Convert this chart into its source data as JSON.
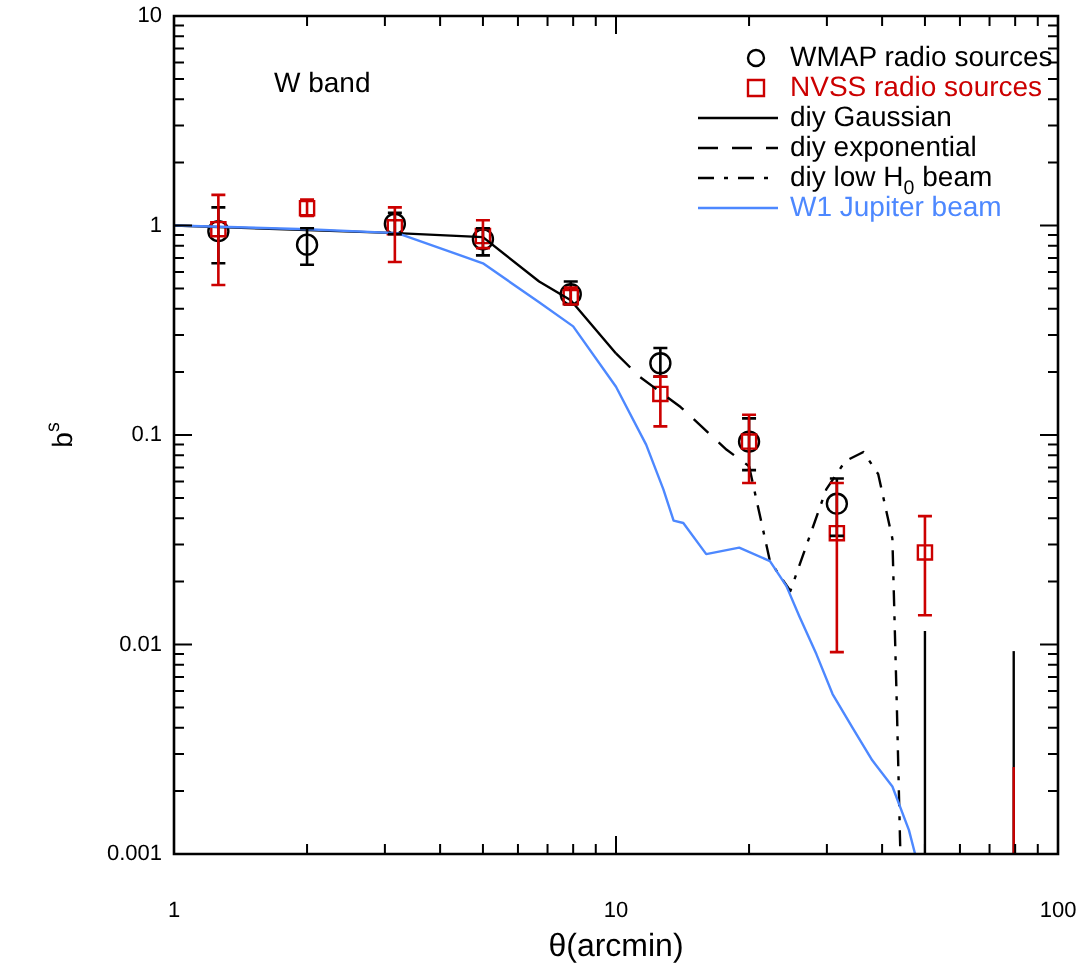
{
  "chart_data": {
    "type": "scatter",
    "xlabel": "θ(arcmin)",
    "ylabel": "b$^{s}$",
    "annotations": [
      "W band"
    ],
    "log": "xy",
    "grid": false,
    "legend": "top right",
    "xlim": [
      1,
      100
    ],
    "ylim": [
      0.001,
      10
    ],
    "xticks": [
      1,
      {
        "value": 2,
        "label": null
      },
      {
        "value": 3,
        "label": null
      },
      {
        "value": 4,
        "label": null
      },
      {
        "value": 5,
        "label": null
      },
      {
        "value": 6,
        "label": null
      },
      {
        "value": 7,
        "label": null
      },
      {
        "value": 8,
        "label": null
      },
      {
        "value": 9,
        "label": null
      },
      10,
      {
        "value": 20,
        "label": null
      },
      {
        "value": 30,
        "label": null
      },
      {
        "value": 40,
        "label": null
      },
      {
        "value": 50,
        "label": null
      },
      {
        "value": 60,
        "label": null
      },
      {
        "value": 70,
        "label": null
      },
      {
        "value": 80,
        "label": null
      },
      {
        "value": 90,
        "label": null
      },
      100
    ],
    "yticks": [
      0.001,
      {
        "value": 0.002,
        "label": null
      },
      {
        "value": 0.003,
        "label": null
      },
      {
        "value": 0.004,
        "label": null
      },
      {
        "value": 0.005,
        "label": null
      },
      {
        "value": 0.006,
        "label": null
      },
      {
        "value": 0.007,
        "label": null
      },
      {
        "value": 0.008,
        "label": null
      },
      {
        "value": 0.009,
        "label": null
      },
      0.01,
      {
        "value": 0.02,
        "label": null
      },
      {
        "value": 0.03,
        "label": null
      },
      {
        "value": 0.04,
        "label": null
      },
      {
        "value": 0.05,
        "label": null
      },
      {
        "value": 0.06,
        "label": null
      },
      {
        "value": 0.07,
        "label": null
      },
      {
        "value": 0.08,
        "label": null
      },
      {
        "value": 0.09,
        "label": null
      },
      0.1,
      {
        "value": 0.2,
        "label": null
      },
      {
        "value": 0.3,
        "label": null
      },
      {
        "value": 0.4,
        "label": null
      },
      {
        "value": 0.5,
        "label": null
      },
      {
        "value": 0.6,
        "label": null
      },
      {
        "value": 0.7,
        "label": null
      },
      {
        "value": 0.8,
        "label": null
      },
      {
        "value": 0.9,
        "label": null
      },
      1,
      {
        "value": 2,
        "label": null
      },
      {
        "value": 3,
        "label": null
      },
      {
        "value": 4,
        "label": null
      },
      {
        "value": 5,
        "label": null
      },
      {
        "value": 6,
        "label": null
      },
      {
        "value": 7,
        "label": null
      },
      {
        "value": 8,
        "label": null
      },
      {
        "value": 9,
        "label": null
      },
      10
    ],
    "series": [
      {
        "name": "WMAP radio sources",
        "marker": "circle",
        "color": "#000000",
        "x": [
          1.26,
          2,
          3.16,
          5,
          7.9,
          12.6,
          20,
          31.6
        ],
        "values": [
          0.94,
          0.81,
          1.02,
          0.86,
          0.47,
          0.22,
          0.093,
          0.047
        ],
        "errors": [
          [
            0.66,
            1.22
          ],
          [
            0.65,
            0.97
          ],
          [
            0.91,
            1.15
          ],
          [
            0.72,
            0.97
          ],
          [
            0.42,
            0.54
          ],
          [
            0.19,
            0.26
          ],
          [
            0.068,
            0.12
          ],
          [
            0.033,
            0.062
          ]
        ]
      },
      {
        "type": "line",
        "line_style": "solid",
        "color": "#000000",
        "x": [
          50,
          50
        ],
        "values": [
          0.001,
          0.0116
        ]
      },
      {
        "type": "line",
        "line_style": "solid",
        "color": "#000000",
        "x": [
          79.4,
          79.4
        ],
        "values": [
          0.001,
          0.0093
        ]
      },
      {
        "type": "line",
        "line_style": "solid",
        "color": "#cc0000",
        "x": [
          79.4,
          79.4
        ],
        "values": [
          0.001,
          0.0026
        ]
      },
      {
        "name": "NVSS radio sources",
        "marker": "square",
        "color": "#cc0000",
        "x": [
          1.26,
          2,
          3.16,
          5,
          7.9,
          12.6,
          20,
          31.6,
          50
        ],
        "values": [
          0.96,
          1.21,
          0.98,
          0.89,
          0.455,
          0.157,
          0.093,
          0.034,
          0.0275
        ],
        "errors": [
          [
            0.52,
            1.4
          ],
          [
            1.11,
            1.33
          ],
          [
            0.67,
            1.22
          ],
          [
            0.78,
            1.06
          ],
          [
            0.42,
            0.505
          ],
          [
            0.11,
            0.19
          ],
          [
            0.059,
            0.125
          ],
          [
            0.0092,
            0.059
          ],
          [
            0.0138,
            0.041
          ]
        ]
      },
      {
        "name": "diy Gaussian",
        "type": "line",
        "line_style": "solid",
        "color": "#000000",
        "x": [
          1,
          2,
          3.2,
          5,
          6.7,
          7.9,
          10
        ],
        "values": [
          1.0,
          0.95,
          0.92,
          0.88,
          0.54,
          0.44,
          0.245
        ]
      },
      {
        "name": "diy exponential",
        "type": "line",
        "line_style": "dashed",
        "color": "#000000",
        "x": [
          10,
          11.3,
          14,
          17.8,
          20
        ],
        "values": [
          0.245,
          0.19,
          0.136,
          0.085,
          0.071
        ]
      },
      {
        "name": "diy low H$_{0}$ beam",
        "type": "line",
        "line_style": "dashdot",
        "color": "#000000",
        "x": [
          20,
          22.3,
          24.8,
          29.9,
          33,
          36.3,
          39.2,
          42.2,
          43.2,
          43.9,
          44
        ],
        "values": [
          0.071,
          0.025,
          0.018,
          0.055,
          0.075,
          0.083,
          0.065,
          0.032,
          0.005,
          0.0012,
          0.001
        ]
      },
      {
        "name": "W1 Jupiter beam",
        "type": "line",
        "line_style": "solid",
        "color": "#4d88ff",
        "x": [
          1,
          2,
          3.2,
          5,
          6.7,
          8,
          10,
          11.7,
          12.8,
          13.5,
          14.2,
          16,
          19,
          22.3,
          24.3,
          26,
          28.4,
          30.9,
          34.3,
          38,
          42.2,
          46,
          47.5
        ],
        "values": [
          1.0,
          0.96,
          0.92,
          0.66,
          0.43,
          0.33,
          0.17,
          0.09,
          0.055,
          0.039,
          0.038,
          0.027,
          0.029,
          0.025,
          0.019,
          0.0136,
          0.009,
          0.0058,
          0.004,
          0.0028,
          0.0021,
          0.0013,
          0.001
        ]
      }
    ]
  }
}
